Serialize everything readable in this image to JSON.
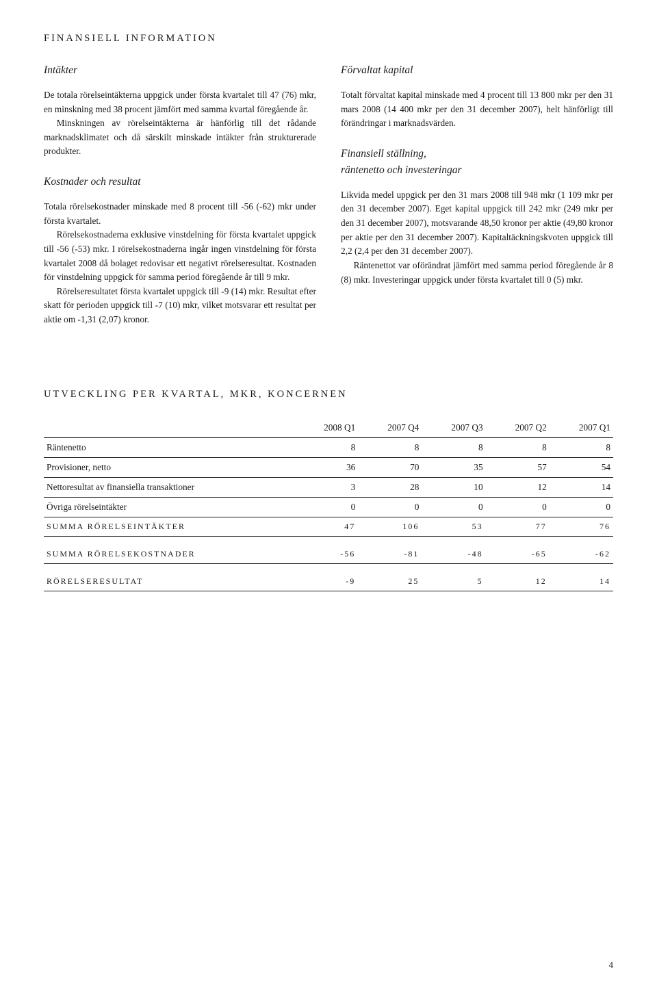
{
  "sectionTitle": "FINANSIELL INFORMATION",
  "left": {
    "h1": "Intäkter",
    "p1a": "De totala rörelseintäkterna uppgick under första kvartalet till 47 (76) mkr, en minskning med 38 procent jämfört med samma kvartal föregående år.",
    "p1b": "Minskningen av rörelseintäkterna är hänförlig till det rådande marknadsklimatet och då särskilt minskade intäkter från strukturerade produkter.",
    "h2": "Kostnader och resultat",
    "p2a": "Totala rörelsekostnader minskade med 8 procent till -56 (-62) mkr under första kvartalet.",
    "p2b": "Rörelsekostnaderna exklusive vinstdelning för första kvartalet uppgick till -56 (-53) mkr. I rörelsekostnaderna ingår ingen vinstdelning för första kvartalet 2008 då bolaget redovisar ett negativt rörelseresultat. Kostnaden för vinstdelning uppgick för samma period föregående år till 9 mkr.",
    "p2c": "Rörelseresultatet första kvartalet uppgick till -9 (14) mkr. Resultat efter skatt för perioden uppgick till -7 (10) mkr, vilket motsvarar ett resultat per aktie om -1,31 (2,07) kronor."
  },
  "right": {
    "h1": "Förvaltat kapital",
    "p1a": "Totalt förvaltat kapital minskade med 4 procent till 13 800 mkr per den 31 mars 2008 (14 400 mkr per den 31 december 2007), helt hänförligt till förändringar i marknadsvärden.",
    "h2a": "Finansiell ställning,",
    "h2b": "räntenetto och investeringar",
    "p2a": "Likvida medel uppgick per den 31 mars 2008 till 948 mkr (1 109 mkr per den 31 december 2007). Eget kapital uppgick till 242 mkr (249 mkr per den 31 december 2007), motsvarande 48,50 kronor per aktie (49,80 kronor per aktie per den 31 december 2007). Kapitaltäckningskvoten uppgick till 2,2 (2,4 per den 31 december 2007).",
    "p2b": "Räntenettot var oförändrat jämfört med samma period föregående år 8 (8) mkr. Investeringar uppgick under första kvartalet till 0 (5) mkr."
  },
  "table": {
    "title": "UTVECKLING PER KVARTAL, MKR, KONCERNEN",
    "columns": [
      "",
      "2008 Q1",
      "2007 Q4",
      "2007 Q3",
      "2007 Q2",
      "2007 Q1"
    ],
    "rows": [
      {
        "label": "Räntenetto",
        "cells": [
          "8",
          "8",
          "8",
          "8",
          "8"
        ],
        "section": false,
        "gap": false
      },
      {
        "label": "Provisioner, netto",
        "cells": [
          "36",
          "70",
          "35",
          "57",
          "54"
        ],
        "section": false,
        "gap": false
      },
      {
        "label": "Nettoresultat av finansiella transaktioner",
        "cells": [
          "3",
          "28",
          "10",
          "12",
          "14"
        ],
        "section": false,
        "gap": false
      },
      {
        "label": "Övriga rörelseintäkter",
        "cells": [
          "0",
          "0",
          "0",
          "0",
          "0"
        ],
        "section": false,
        "gap": false
      },
      {
        "label": "SUMMA RÖRELSEINTÄKTER",
        "cells": [
          "47",
          "106",
          "53",
          "77",
          "76"
        ],
        "section": true,
        "gap": false
      },
      {
        "label": "SUMMA RÖRELSEKOSTNADER",
        "cells": [
          "-56",
          "-81",
          "-48",
          "-65",
          "-62"
        ],
        "section": true,
        "gap": true
      },
      {
        "label": "RÖRELSERESULTAT",
        "cells": [
          "-9",
          "25",
          "5",
          "12",
          "14"
        ],
        "section": true,
        "gap": true
      }
    ]
  },
  "pageNumber": "4",
  "colors": {
    "text": "#1a1a1a",
    "background": "#ffffff",
    "rule": "#1a1a1a"
  }
}
